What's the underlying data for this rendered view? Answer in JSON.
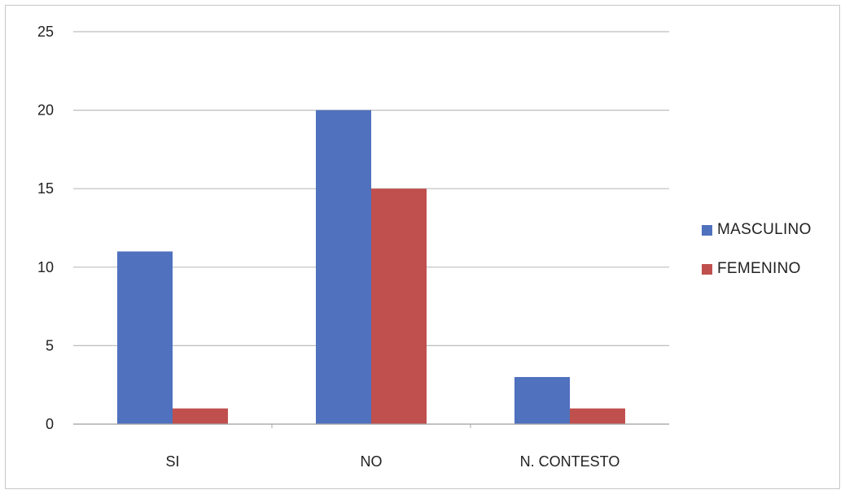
{
  "chart_data": {
    "type": "bar",
    "title": "",
    "xlabel": "",
    "ylabel": "",
    "categories": [
      "SI",
      "NO",
      "N. CONTESTO"
    ],
    "series": [
      {
        "name": "MASCULINO",
        "values": [
          11,
          20,
          3
        ],
        "color": "#4f71be"
      },
      {
        "name": "FEMENINO",
        "values": [
          1,
          15,
          1
        ],
        "color": "#c0504d"
      }
    ],
    "ylim": [
      0,
      25
    ],
    "yticks": [
      0,
      5,
      10,
      15,
      20,
      25
    ],
    "grid": true,
    "legend_position": "right"
  }
}
